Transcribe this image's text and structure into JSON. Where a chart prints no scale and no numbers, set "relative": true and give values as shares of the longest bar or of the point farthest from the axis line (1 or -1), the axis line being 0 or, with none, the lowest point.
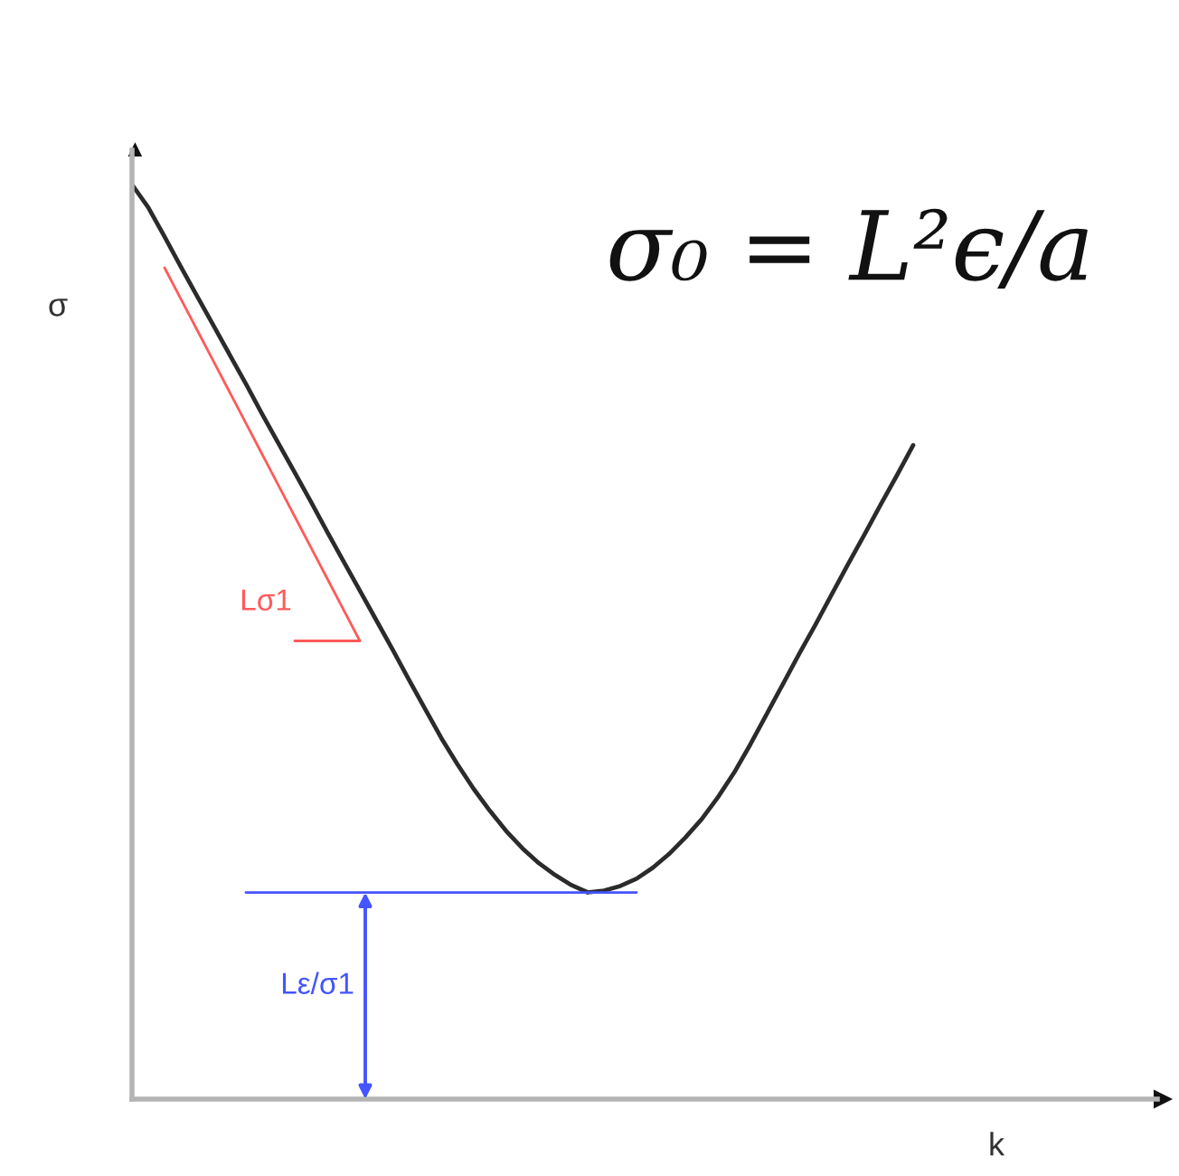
{
  "chart_data": {
    "type": "line",
    "relative": true,
    "xlabel": "k",
    "ylabel": "σ",
    "categories": [
      null,
      null,
      null,
      null,
      null,
      null,
      null,
      null,
      null,
      null,
      null,
      null,
      null,
      null,
      null,
      null,
      null,
      null,
      null,
      null,
      null,
      null,
      null,
      null,
      null,
      null,
      null,
      null,
      null,
      null,
      null,
      null,
      null,
      null,
      null,
      null,
      null,
      null,
      null,
      null,
      null,
      null,
      null,
      null,
      null,
      null,
      null,
      null,
      null,
      null,
      null,
      null,
      null,
      null,
      null,
      null,
      null,
      null,
      null,
      null,
      null,
      null,
      null,
      null
    ],
    "series": [
      {
        "color": "#2b2b2b",
        "values": [
          1.0,
          0.975,
          0.943,
          0.91,
          0.878,
          0.846,
          0.814,
          0.782,
          0.749,
          0.717,
          0.685,
          0.653,
          0.62,
          0.588,
          0.556,
          0.524,
          0.492,
          0.459,
          0.427,
          0.395,
          0.366,
          0.339,
          0.315,
          0.293,
          0.274,
          0.258,
          0.245,
          0.234,
          0.226,
          0.228,
          0.233,
          0.241,
          0.253,
          0.268,
          0.286,
          0.306,
          0.33,
          0.357,
          0.388,
          0.421,
          0.454,
          0.487,
          0.519,
          0.552,
          0.585,
          0.617,
          0.65,
          0.682,
          0.715,
          null,
          null,
          null,
          null,
          null,
          null,
          null,
          null,
          null,
          null,
          null,
          null,
          null,
          null,
          null
        ]
      },
      {
        "color": "#ff5a5a",
        "values": [
          null,
          null,
          0.909,
          0.875,
          0.841,
          0.807,
          0.773,
          0.739,
          0.705,
          0.671,
          0.637,
          0.603,
          0.569,
          0.535,
          0.501,
          null,
          null,
          null,
          null,
          null,
          null,
          null,
          null,
          null,
          null,
          null,
          null,
          null,
          null,
          null,
          null,
          null,
          null,
          null,
          null,
          null,
          null,
          null,
          null,
          null,
          null,
          null,
          null,
          null,
          null,
          null,
          null,
          null,
          null,
          null,
          null,
          null,
          null,
          null,
          null,
          null,
          null,
          null,
          null,
          null,
          null,
          null,
          null,
          null
        ]
      },
      {
        "color": "#ff5a5a",
        "values": [
          null,
          null,
          null,
          null,
          null,
          null,
          null,
          null,
          null,
          null,
          0.501,
          0.501,
          0.501,
          0.501,
          0.501,
          null,
          null,
          null,
          null,
          null,
          null,
          null,
          null,
          null,
          null,
          null,
          null,
          null,
          null,
          null,
          null,
          null,
          null,
          null,
          null,
          null,
          null,
          null,
          null,
          null,
          null,
          null,
          null,
          null,
          null,
          null,
          null,
          null,
          null,
          null,
          null,
          null,
          null,
          null,
          null,
          null,
          null,
          null,
          null,
          null,
          null,
          null,
          null,
          null
        ]
      },
      {
        "color": "#4455ff",
        "values": [
          null,
          null,
          null,
          null,
          null,
          null,
          null,
          0.226,
          0.226,
          0.226,
          0.226,
          0.226,
          0.226,
          0.226,
          0.226,
          0.226,
          0.226,
          0.226,
          0.226,
          0.226,
          0.226,
          0.226,
          0.226,
          0.226,
          0.226,
          0.226,
          0.226,
          0.226,
          0.226,
          0.226,
          0.226,
          0.226,
          null,
          null,
          null,
          null,
          null,
          null,
          null,
          null,
          null,
          null,
          null,
          null,
          null,
          null,
          null,
          null,
          null,
          null,
          null,
          null,
          null,
          null,
          null,
          null,
          null,
          null,
          null,
          null,
          null,
          null,
          null,
          null
        ]
      }
    ],
    "annotations": [
      "σ₀ = L²ϵ/a",
      "Lσ1",
      "Lε/σ1"
    ]
  }
}
